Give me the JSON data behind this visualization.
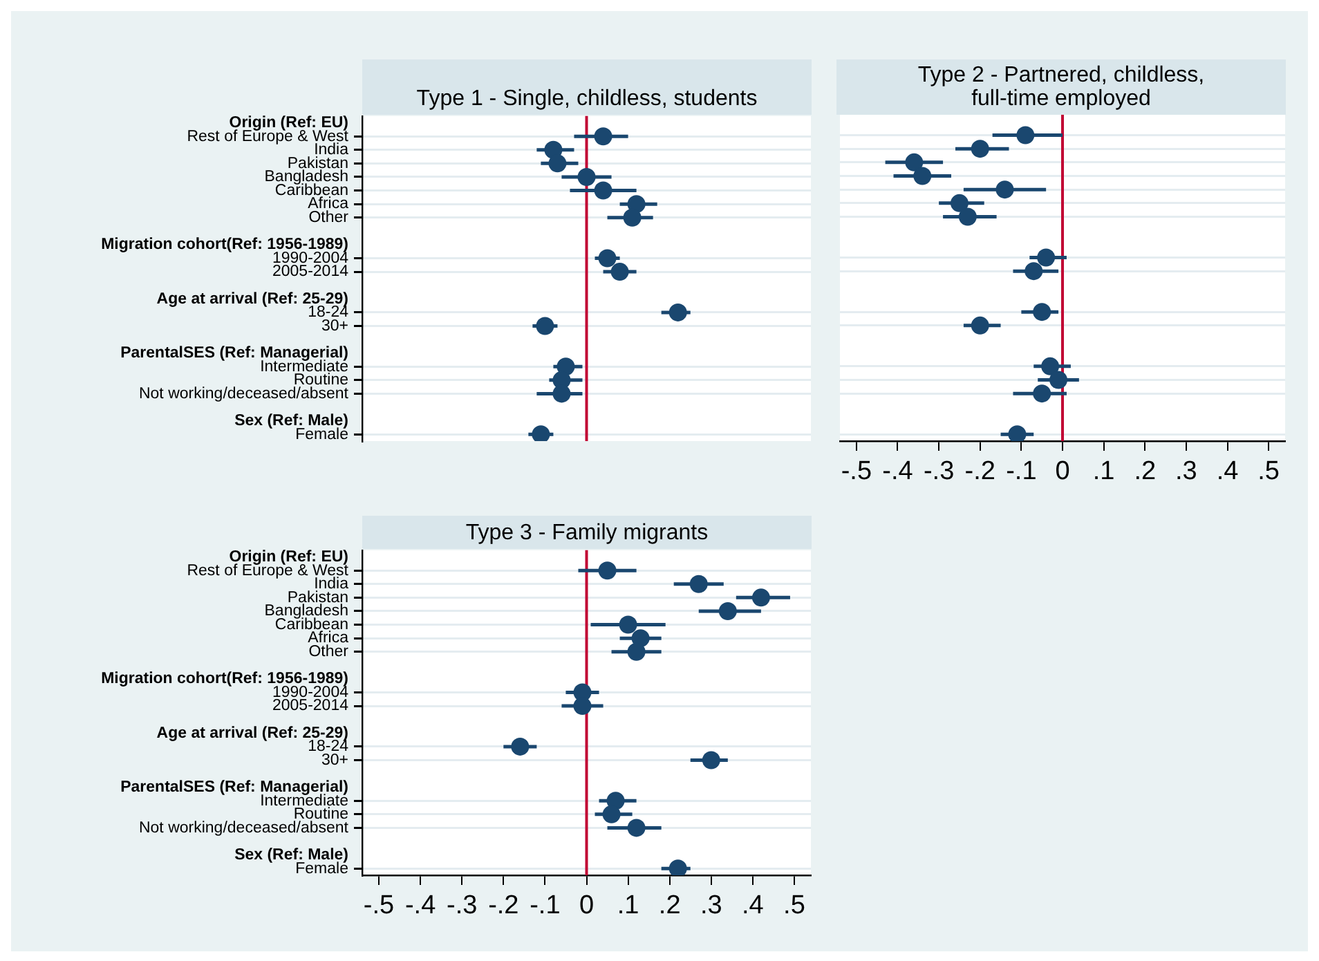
{
  "chart_data": [
    {
      "type": "scatter",
      "orientation": "horizontal",
      "title": "Type 1 - Single, childless, students",
      "categories": [
        "Origin (Ref: EU)",
        "Rest of Europe & West",
        "India",
        "Pakistan",
        "Bangladesh",
        "Caribbean",
        "Africa",
        "Other",
        null,
        "Migration cohort(Ref: 1956-1989)",
        "1990-2004",
        "2005-2014",
        null,
        "Age at arrival (Ref: 25-29)",
        "18-24",
        "30+",
        null,
        "ParentalSES (Ref: Managerial)",
        "Intermediate",
        "Routine",
        "Not working/deceased/absent",
        null,
        "Sex (Ref: Male)",
        "Female"
      ],
      "series": [
        {
          "color": "#1a476f",
          "values": [
            null,
            0.04,
            -0.08,
            -0.07,
            0.0,
            0.04,
            0.12,
            0.11,
            null,
            null,
            0.05,
            0.08,
            null,
            null,
            0.22,
            -0.1,
            null,
            null,
            -0.05,
            -0.06,
            -0.06,
            null,
            null,
            -0.11
          ],
          "errors": [
            null,
            [
              -0.03,
              0.1
            ],
            [
              -0.12,
              -0.03
            ],
            [
              -0.11,
              -0.02
            ],
            [
              -0.06,
              0.06
            ],
            [
              -0.04,
              0.12
            ],
            [
              0.08,
              0.17
            ],
            [
              0.05,
              0.16
            ],
            null,
            null,
            [
              0.02,
              0.08
            ],
            [
              0.04,
              0.12
            ],
            null,
            null,
            [
              0.18,
              0.25
            ],
            [
              -0.13,
              -0.07
            ],
            null,
            null,
            [
              -0.08,
              -0.01
            ],
            [
              -0.09,
              -0.01
            ],
            [
              -0.12,
              -0.01
            ],
            null,
            null,
            [
              -0.14,
              -0.08
            ]
          ]
        }
      ],
      "xlim": [
        -0.54,
        0.54
      ],
      "ref_lines": [
        {
          "axis": "x",
          "value": 0,
          "color": "#c10534"
        }
      ],
      "marker": "circle",
      "grid": "y",
      "tick_labels": "y"
    },
    {
      "type": "scatter",
      "orientation": "horizontal",
      "title": "Type 2 - Partnered, childless, full-time employed",
      "categories": [
        null,
        null,
        null,
        null,
        null,
        null,
        null,
        null,
        null,
        null,
        null,
        null,
        null,
        null,
        null,
        null,
        null,
        null,
        null,
        null,
        null,
        null,
        null,
        null
      ],
      "series": [
        {
          "color": "#1a476f",
          "values": [
            null,
            -0.09,
            -0.2,
            -0.36,
            -0.34,
            -0.14,
            -0.25,
            -0.23,
            null,
            null,
            -0.04,
            -0.07,
            null,
            null,
            -0.05,
            -0.2,
            null,
            null,
            -0.03,
            -0.01,
            -0.05,
            null,
            null,
            -0.11
          ],
          "errors": [
            null,
            [
              -0.17,
              0.0
            ],
            [
              -0.26,
              -0.13
            ],
            [
              -0.43,
              -0.29
            ],
            [
              -0.41,
              -0.27
            ],
            [
              -0.24,
              -0.04
            ],
            [
              -0.3,
              -0.19
            ],
            [
              -0.29,
              -0.16
            ],
            null,
            null,
            [
              -0.08,
              0.01
            ],
            [
              -0.12,
              -0.01
            ],
            null,
            null,
            [
              -0.1,
              -0.01
            ],
            [
              -0.24,
              -0.15
            ],
            null,
            null,
            [
              -0.07,
              0.02
            ],
            [
              -0.06,
              0.04
            ],
            [
              -0.12,
              0.01
            ],
            null,
            null,
            [
              -0.15,
              -0.07
            ]
          ]
        }
      ],
      "xlim": [
        -0.54,
        0.54
      ],
      "xticks": [
        {
          "value": -0.5,
          "label": "-.5"
        },
        {
          "value": -0.4,
          "label": "-.4"
        },
        {
          "value": -0.3,
          "label": "-.3"
        },
        {
          "value": -0.2,
          "label": "-.2"
        },
        {
          "value": -0.1,
          "label": "-.1"
        },
        0,
        {
          "value": 0.1,
          "label": ".1"
        },
        {
          "value": 0.2,
          "label": ".2"
        },
        {
          "value": 0.3,
          "label": ".3"
        },
        {
          "value": 0.4,
          "label": ".4"
        },
        {
          "value": 0.5,
          "label": ".5"
        }
      ],
      "ref_lines": [
        {
          "axis": "x",
          "value": 0,
          "color": "#c10534"
        }
      ],
      "marker": "circle",
      "grid": "y",
      "tick_labels": "x"
    },
    {
      "type": "scatter",
      "orientation": "horizontal",
      "title": "Type 3 - Family migrants",
      "categories": [
        "Origin (Ref: EU)",
        "Rest of Europe & West",
        "India",
        "Pakistan",
        "Bangladesh",
        "Caribbean",
        "Africa",
        "Other",
        null,
        "Migration cohort(Ref: 1956-1989)",
        "1990-2004",
        "2005-2014",
        null,
        "Age at arrival (Ref: 25-29)",
        "18-24",
        "30+",
        null,
        "ParentalSES (Ref: Managerial)",
        "Intermediate",
        "Routine",
        "Not working/deceased/absent",
        null,
        "Sex (Ref: Male)",
        "Female"
      ],
      "series": [
        {
          "color": "#1a476f",
          "values": [
            null,
            0.05,
            0.27,
            0.42,
            0.34,
            0.1,
            0.13,
            0.12,
            null,
            null,
            -0.01,
            -0.01,
            null,
            null,
            -0.16,
            0.3,
            null,
            null,
            0.07,
            0.06,
            0.12,
            null,
            null,
            0.22
          ],
          "errors": [
            null,
            [
              -0.02,
              0.12
            ],
            [
              0.21,
              0.33
            ],
            [
              0.36,
              0.49
            ],
            [
              0.27,
              0.42
            ],
            [
              0.01,
              0.19
            ],
            [
              0.08,
              0.18
            ],
            [
              0.06,
              0.18
            ],
            null,
            null,
            [
              -0.05,
              0.03
            ],
            [
              -0.06,
              0.04
            ],
            null,
            null,
            [
              -0.2,
              -0.12
            ],
            [
              0.25,
              0.34
            ],
            null,
            null,
            [
              0.03,
              0.12
            ],
            [
              0.02,
              0.11
            ],
            [
              0.05,
              0.18
            ],
            null,
            null,
            [
              0.18,
              0.25
            ]
          ]
        }
      ],
      "xlim": [
        -0.54,
        0.54
      ],
      "xticks": [
        {
          "value": -0.5,
          "label": "-.5"
        },
        {
          "value": -0.4,
          "label": "-.4"
        },
        {
          "value": -0.3,
          "label": "-.3"
        },
        {
          "value": -0.2,
          "label": "-.2"
        },
        {
          "value": -0.1,
          "label": "-.1"
        },
        0,
        {
          "value": 0.1,
          "label": ".1"
        },
        {
          "value": 0.2,
          "label": ".2"
        },
        {
          "value": 0.3,
          "label": ".3"
        },
        {
          "value": 0.4,
          "label": ".4"
        },
        {
          "value": 0.5,
          "label": ".5"
        }
      ],
      "ref_lines": [
        {
          "axis": "x",
          "value": 0,
          "color": "#c10534"
        }
      ],
      "marker": "circle",
      "grid": "y"
    }
  ]
}
